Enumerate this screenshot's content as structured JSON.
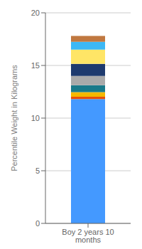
{
  "chart_data": {
    "type": "bar",
    "stacked": true,
    "categories": [
      "Boy 2 years 10 months"
    ],
    "ylabel": "Percentile Weight in Kilograms",
    "series": [
      {
        "color": "#4499FF",
        "values": [
          11.8
        ]
      },
      {
        "color": "#E8500A",
        "values": [
          0.22
        ]
      },
      {
        "color": "#F5B800",
        "values": [
          0.45
        ]
      },
      {
        "color": "#1A7A8A",
        "values": [
          0.65
        ]
      },
      {
        "color": "#AAAAAA",
        "values": [
          0.88
        ]
      },
      {
        "color": "#1E3A6E",
        "values": [
          1.15
        ]
      },
      {
        "color": "#FFE566",
        "values": [
          1.35
        ]
      },
      {
        "color": "#3DB8F5",
        "values": [
          0.75
        ]
      },
      {
        "color": "#C07840",
        "values": [
          0.55
        ]
      }
    ],
    "ylim": [
      0,
      20
    ],
    "yticks": [
      0,
      5,
      10,
      15,
      20
    ],
    "grid": true
  }
}
